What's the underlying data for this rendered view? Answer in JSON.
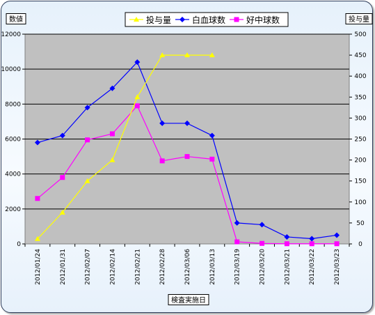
{
  "chart_data": {
    "type": "line",
    "title": "",
    "xlabel": "検査実施日",
    "ylabel": "数値",
    "y2label": "投与量",
    "categories": [
      "2012/01/24",
      "2012/01/31",
      "2012/02/07",
      "2012/02/14",
      "2012/02/21",
      "2012/02/28",
      "2012/03/06",
      "2012/03/13",
      "2012/03/19",
      "2012/03/20",
      "2012/03/21",
      "2012/03/22",
      "2012/03/23"
    ],
    "ylim": [
      0,
      12000
    ],
    "yticks": [
      "0",
      "2000",
      "4000",
      "6000",
      "8000",
      "10000",
      "12000"
    ],
    "y2lim": [
      0,
      500
    ],
    "y2ticks": [
      "0",
      "50",
      "100",
      "150",
      "200",
      "250",
      "300",
      "350",
      "400",
      "450",
      "500"
    ],
    "grid": "horizontal",
    "legend_position": "top",
    "series": [
      {
        "name": "投与量",
        "axis": "right",
        "color": "#ffff00",
        "marker": "triangle",
        "values": [
          12,
          75,
          150,
          200,
          350,
          450,
          450,
          450,
          null,
          null,
          null,
          null,
          null
        ]
      },
      {
        "name": "白血球数",
        "axis": "left",
        "color": "#0000ff",
        "marker": "diamond",
        "values": [
          5800,
          6200,
          7800,
          8900,
          10400,
          6900,
          6900,
          6200,
          1200,
          1100,
          400,
          300,
          500
        ]
      },
      {
        "name": "好中球数",
        "axis": "left",
        "color": "#ff00ff",
        "marker": "square",
        "values": [
          2600,
          3800,
          5950,
          6300,
          7900,
          4750,
          5000,
          4850,
          120,
          30,
          10,
          10,
          10
        ]
      }
    ]
  }
}
